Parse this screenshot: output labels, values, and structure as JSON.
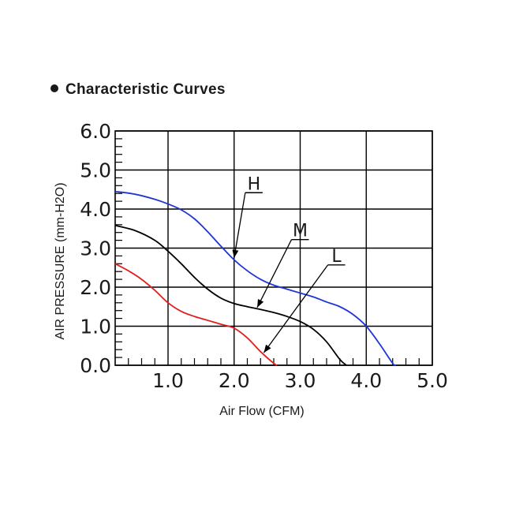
{
  "title": "Characteristic Curves",
  "colors": {
    "H": "#1f35d6",
    "M": "#000000",
    "L": "#e02020",
    "grid": "#000000"
  },
  "chart_data": {
    "type": "line",
    "title": "Characteristic Curves",
    "xlabel": "Air Flow (CFM)",
    "ylabel": "AIR PRESSURE (mm-H2O)",
    "xlim": [
      0.2,
      5.0
    ],
    "ylim": [
      0,
      6.0
    ],
    "x_ticks": [
      1.0,
      2.0,
      3.0,
      4.0,
      5.0
    ],
    "x_tick_labels": [
      "1.0",
      "2.0",
      "3.0",
      "4.0",
      "5.0"
    ],
    "y_ticks": [
      0,
      1.0,
      2.0,
      3.0,
      4.0,
      5.0,
      6.0
    ],
    "y_tick_labels": [
      "0.0",
      "1.0",
      "2.0",
      "3.0",
      "4.0",
      "5.0",
      "6.0"
    ],
    "grid": true,
    "series": [
      {
        "name": "H",
        "color": "#1f35d6",
        "x": [
          0.2,
          0.5,
          0.8,
          1.0,
          1.2,
          1.4,
          1.6,
          1.8,
          2.0,
          2.2,
          2.4,
          2.6,
          2.8,
          3.0,
          3.2,
          3.4,
          3.6,
          3.8,
          4.0,
          4.2,
          4.4,
          4.45
        ],
        "y": [
          4.45,
          4.38,
          4.25,
          4.13,
          3.98,
          3.75,
          3.42,
          3.05,
          2.7,
          2.42,
          2.2,
          2.05,
          1.95,
          1.85,
          1.75,
          1.62,
          1.5,
          1.3,
          1.0,
          0.55,
          0.05,
          0.0
        ]
      },
      {
        "name": "M",
        "color": "#000000",
        "x": [
          0.2,
          0.5,
          0.8,
          1.0,
          1.2,
          1.4,
          1.6,
          1.8,
          2.0,
          2.2,
          2.4,
          2.6,
          2.8,
          3.0,
          3.2,
          3.4,
          3.6,
          3.7
        ],
        "y": [
          3.58,
          3.45,
          3.2,
          2.92,
          2.6,
          2.25,
          1.95,
          1.72,
          1.58,
          1.5,
          1.43,
          1.35,
          1.25,
          1.12,
          0.92,
          0.6,
          0.15,
          0.0
        ]
      },
      {
        "name": "L",
        "color": "#e02020",
        "x": [
          0.2,
          0.4,
          0.6,
          0.8,
          1.0,
          1.2,
          1.4,
          1.6,
          1.8,
          2.0,
          2.2,
          2.4,
          2.6,
          2.65
        ],
        "y": [
          2.6,
          2.42,
          2.2,
          1.92,
          1.6,
          1.38,
          1.25,
          1.15,
          1.05,
          0.95,
          0.7,
          0.35,
          0.05,
          0.0
        ]
      }
    ],
    "annotations": [
      {
        "text": "H",
        "series": "H",
        "label_at": [
          2.3,
          4.5
        ],
        "arrow_to": [
          2.0,
          2.75
        ]
      },
      {
        "text": "M",
        "series": "M",
        "label_at": [
          3.0,
          3.3
        ],
        "arrow_to": [
          2.35,
          1.48
        ]
      },
      {
        "text": "L",
        "series": "L",
        "label_at": [
          3.55,
          2.65
        ],
        "arrow_to": [
          2.45,
          0.32
        ]
      }
    ]
  }
}
